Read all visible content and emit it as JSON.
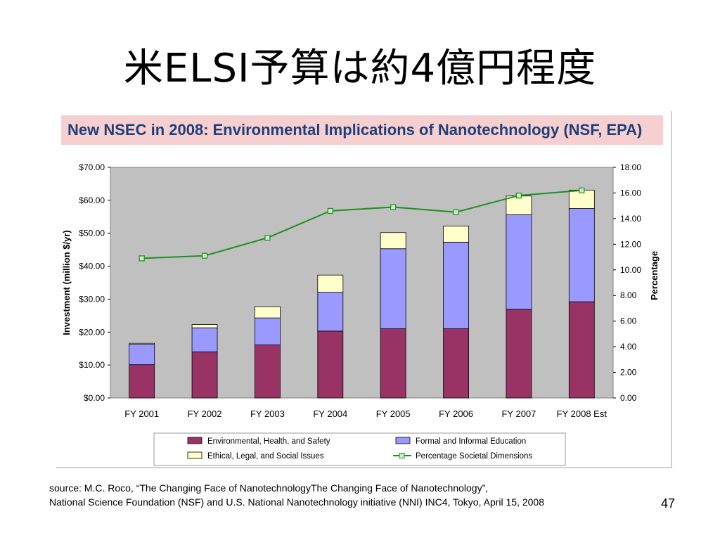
{
  "slide": {
    "title": "米ELSI予算は約4億円程度",
    "source_line1": "source: M.C. Roco, “The Changing Face of NanotechnologyThe Changing Face of Nanotechnology”,",
    "source_line2": "National Science Foundation (NSF) and U.S. National Nanotechnology initiative (NNI) INC4, Tokyo, April 15, 2008",
    "page_number": "47"
  },
  "chart_data": {
    "type": "bar",
    "stacked": true,
    "title": "New NSEC in 2008: Environmental Implications of Nanotechnology (NSF, EPA)",
    "categories": [
      "FY 2001",
      "FY 2002",
      "FY 2003",
      "FY 2004",
      "FY 2005",
      "FY 2006",
      "FY 2007",
      "FY 2008 Est"
    ],
    "ylabel": "Investment (million $/yr)",
    "y2label": "Percentage",
    "ylim": [
      0,
      70
    ],
    "y2lim": [
      0,
      18
    ],
    "yticks": [
      "$0.00",
      "$10.00",
      "$20.00",
      "$30.00",
      "$40.00",
      "$50.00",
      "$60.00",
      "$70.00"
    ],
    "y2ticks": [
      "0.00",
      "2.00",
      "4.00",
      "6.00",
      "8.00",
      "10.00",
      "12.00",
      "14.00",
      "16.00",
      "18.00"
    ],
    "series": [
      {
        "name": "Environmental, Health, and Safety",
        "color": "#993366",
        "values": [
          10.1,
          14.0,
          16.1,
          20.3,
          21.0,
          21.0,
          26.9,
          29.2
        ]
      },
      {
        "name": "Formal and Informal Education",
        "color": "#9999ff",
        "values": [
          6.2,
          7.3,
          8.2,
          11.8,
          24.3,
          26.3,
          28.7,
          28.3
        ]
      },
      {
        "name": "Ethical, Legal, and Social Issues",
        "color": "#ffffcc",
        "values": [
          0.3,
          1.0,
          3.4,
          5.2,
          4.9,
          4.9,
          5.7,
          5.6
        ]
      },
      {
        "name": "Percentage Societal Dimensions",
        "type": "line",
        "axis": "y2",
        "color": "#1f8f1f",
        "values": [
          10.9,
          11.1,
          12.5,
          14.6,
          14.9,
          14.5,
          15.8,
          16.2
        ]
      }
    ],
    "grid": false,
    "legend": "bottom"
  }
}
